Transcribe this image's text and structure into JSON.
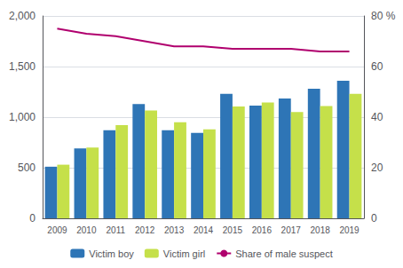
{
  "chart_data": {
    "type": "bar",
    "categories": [
      "2009",
      "2010",
      "2011",
      "2012",
      "2013",
      "2014",
      "2015",
      "2016",
      "2017",
      "2018",
      "2019"
    ],
    "series": [
      {
        "name": "Victim boy",
        "type": "bar",
        "color": "#2e75b6",
        "values": [
          510,
          690,
          870,
          1130,
          870,
          845,
          1230,
          1115,
          1185,
          1280,
          1360
        ]
      },
      {
        "name": "Victim girl",
        "type": "bar",
        "color": "#c5e04a",
        "values": [
          530,
          700,
          920,
          1065,
          950,
          880,
          1105,
          1145,
          1050,
          1110,
          1230
        ]
      },
      {
        "name": "Share of male suspect",
        "type": "line",
        "axis": "y2",
        "color": "#b0006e",
        "values": [
          75,
          73,
          72,
          70,
          68,
          68,
          67,
          67,
          67,
          66,
          66
        ]
      }
    ],
    "ylim": [
      0,
      2000
    ],
    "yticks": [
      0,
      500,
      {
        "value": 1000,
        "label": "1,000"
      },
      {
        "value": 1500,
        "label": "1,500"
      },
      {
        "value": 2000,
        "label": "2,000"
      }
    ],
    "y2lim": [
      0,
      80
    ],
    "y2ticks": [
      0,
      20,
      40,
      60,
      {
        "value": 80,
        "label": "80 %"
      }
    ],
    "grid": true,
    "legend": "bottom"
  }
}
